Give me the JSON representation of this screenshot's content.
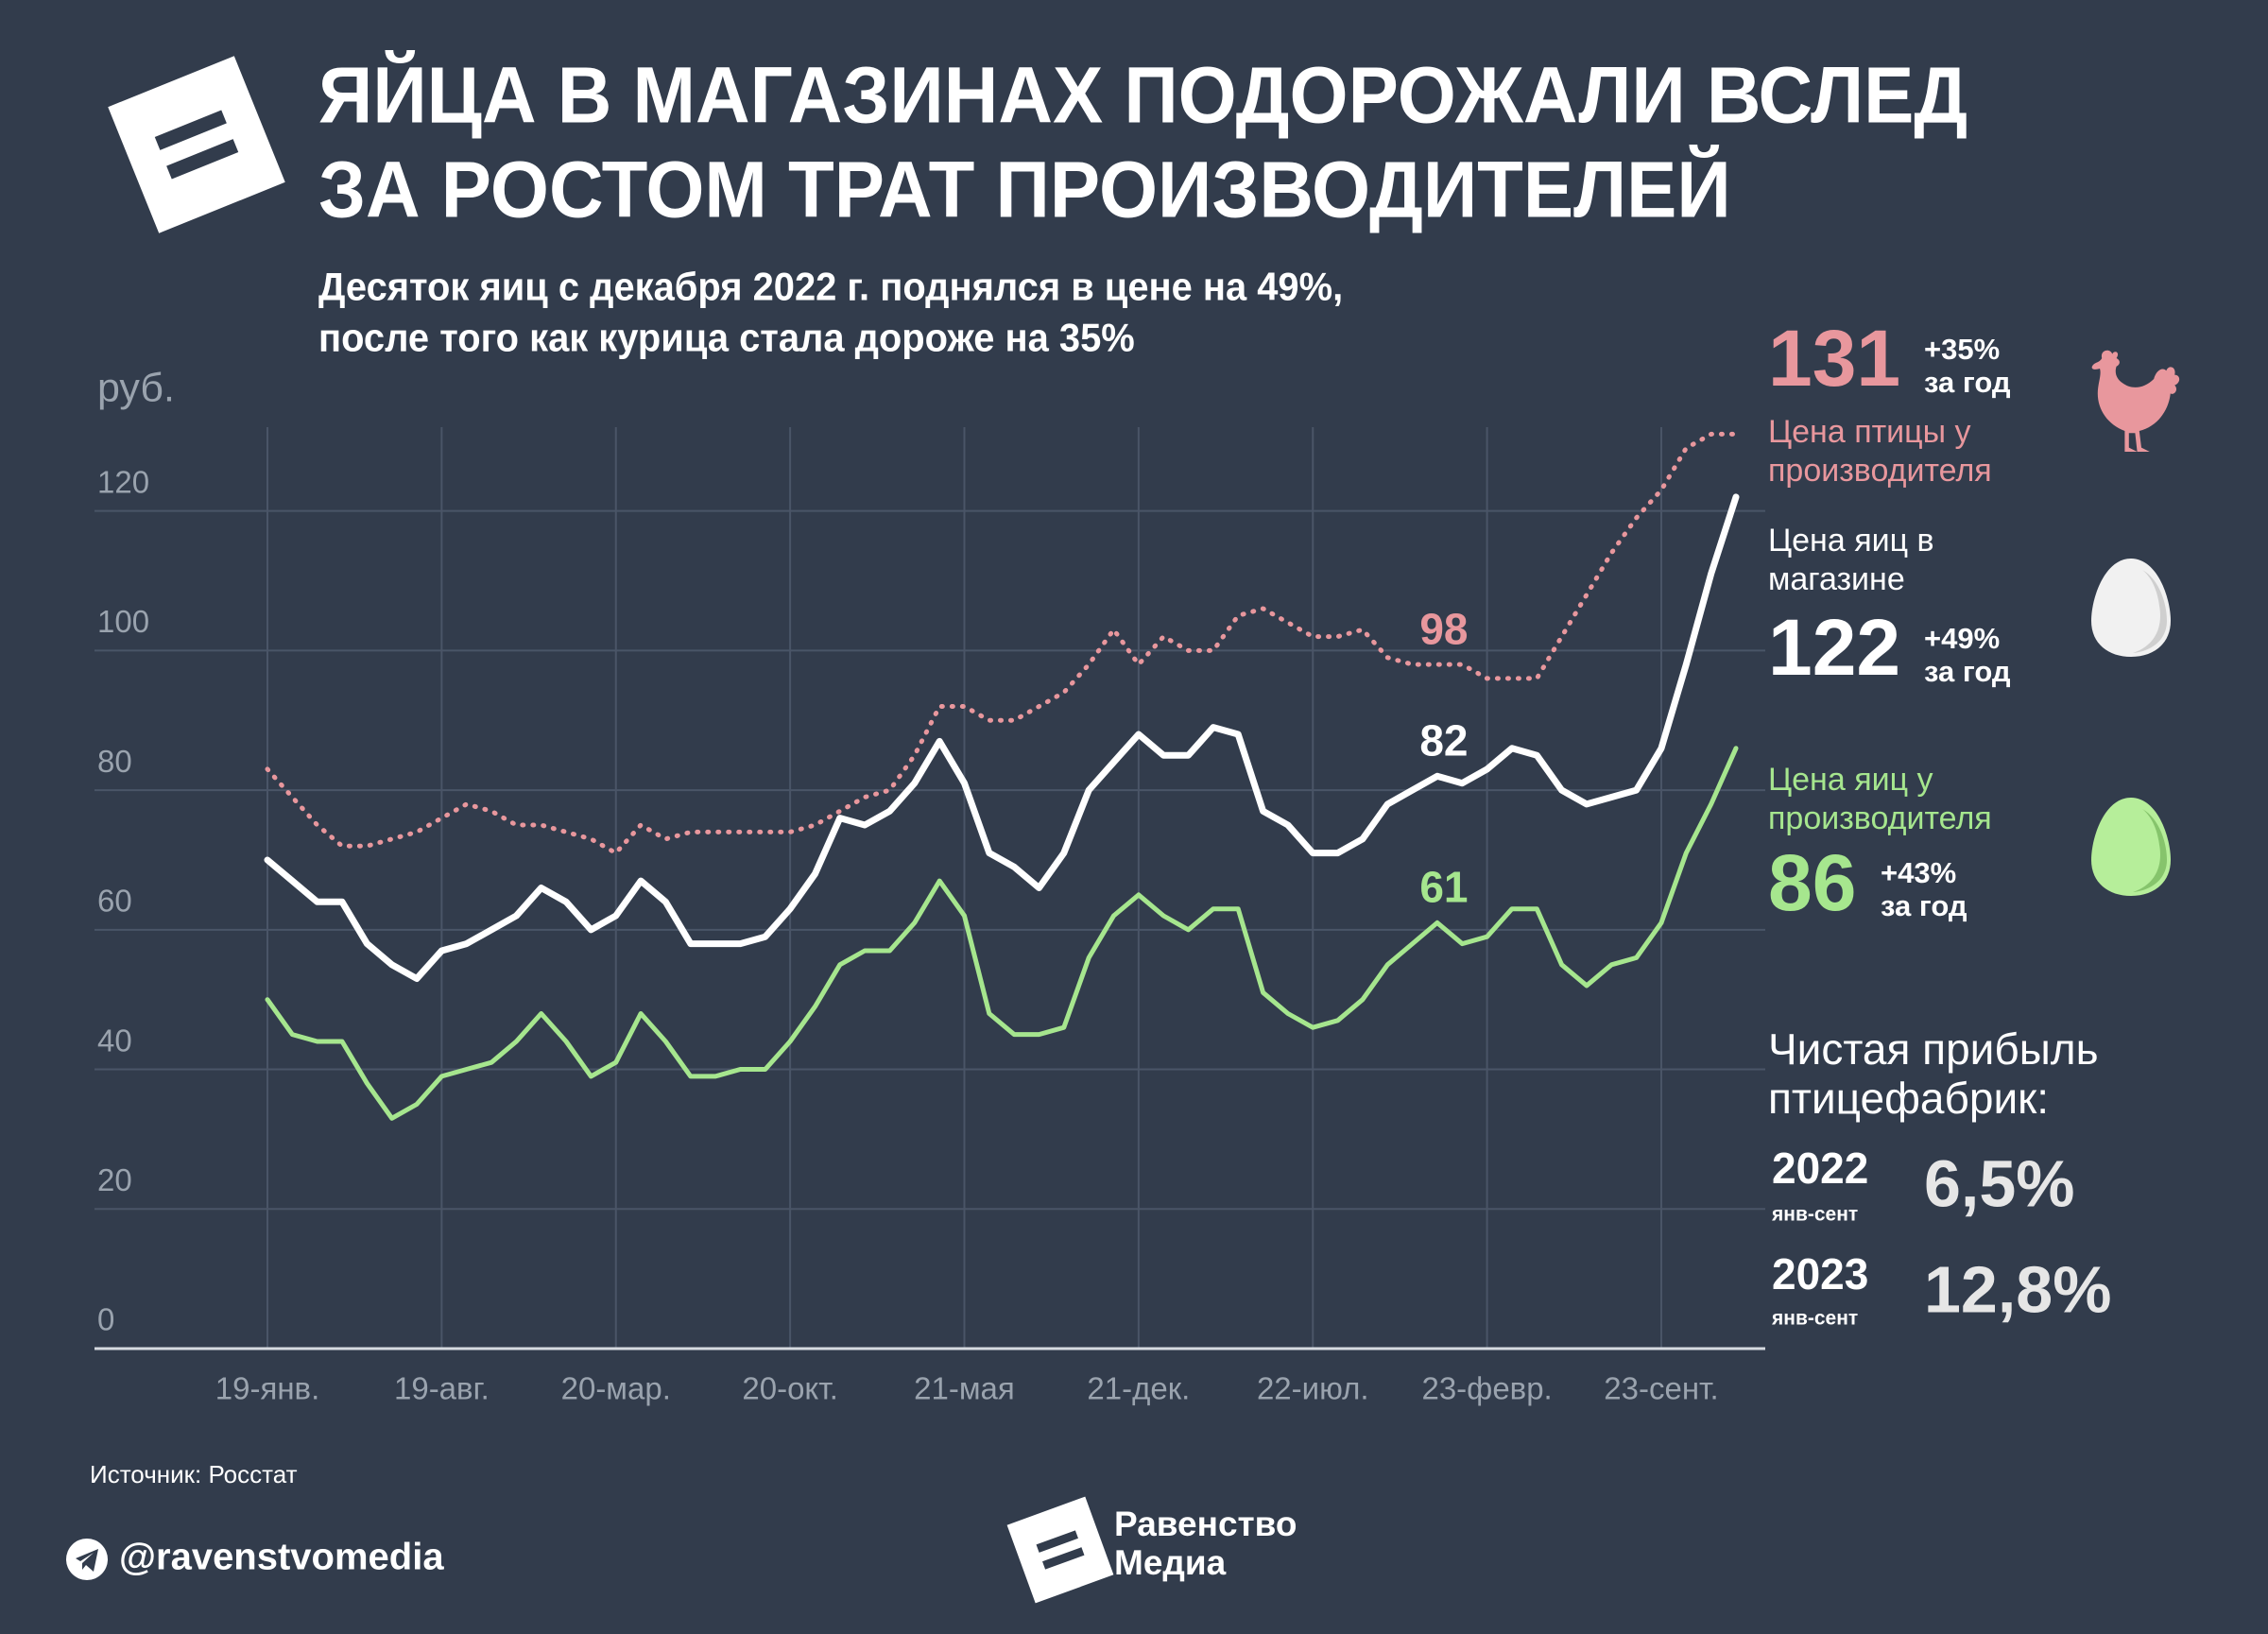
{
  "chart_data": {
    "type": "line",
    "title": "ЯЙЦА В МАГАЗИНАХ ПОДОРОЖАЛИ ВСЛЕД\nЗА РОСТОМ ТРАТ ПРОИЗВОДИТЕЛЕЙ",
    "subtitle": "Десяток яиц с декабря 2022 г. поднялся в цене на 49%,\nпосле того как курица стала дороже на 35%",
    "y_unit": "руб.",
    "categories": [
      "19-янв.",
      null,
      null,
      null,
      null,
      null,
      null,
      "19-авг.",
      null,
      null,
      null,
      null,
      null,
      null,
      "20-мар.",
      null,
      null,
      null,
      null,
      null,
      null,
      "20-окт.",
      null,
      null,
      null,
      null,
      null,
      null,
      "21-мая",
      null,
      null,
      null,
      null,
      null,
      null,
      "21-дек.",
      null,
      null,
      null,
      null,
      null,
      null,
      "22-июл.",
      null,
      null,
      null,
      null,
      null,
      null,
      "23-февр.",
      null,
      null,
      null,
      null,
      null,
      null,
      "23-сент.",
      null,
      null,
      null
    ],
    "series": [
      {
        "name": "Цена птицы у\nпроизводителя",
        "color": "#e8979d",
        "dashed": true,
        "change": "+35%",
        "period": "за год",
        "values": [
          83,
          79,
          75,
          72,
          72,
          73,
          74,
          76,
          78,
          77,
          75,
          75,
          74,
          73,
          71,
          75,
          73,
          74,
          74,
          74,
          74,
          74,
          75,
          77,
          79,
          80,
          85,
          92,
          92,
          90,
          90,
          92,
          94,
          98,
          103,
          98,
          102,
          100,
          100,
          105,
          106,
          104,
          102,
          102,
          103,
          99,
          98,
          98,
          98,
          96,
          96,
          96,
          102,
          108,
          114,
          119,
          123,
          129,
          131,
          131
        ]
      },
      {
        "name": "Цена яиц в\nмагазине",
        "color": "#ffffff",
        "dashed": false,
        "change": "+49%",
        "period": "за год",
        "values": [
          70,
          67,
          64,
          64,
          58,
          55,
          53,
          57,
          58,
          60,
          62,
          66,
          64,
          60,
          62,
          67,
          64,
          58,
          58,
          58,
          59,
          63,
          68,
          76,
          75,
          77,
          81,
          87,
          81,
          71,
          69,
          66,
          71,
          80,
          84,
          88,
          85,
          85,
          89,
          88,
          77,
          75,
          71,
          71,
          73,
          78,
          80,
          82,
          81,
          83,
          86,
          85,
          80,
          78,
          79,
          80,
          86,
          98,
          111,
          122
        ]
      },
      {
        "name": "Цена яиц у\nпроизводителя",
        "color": "#a6e68e",
        "dashed": false,
        "change": "+43%",
        "period": "за год",
        "values": [
          50,
          45,
          44,
          44,
          38,
          33,
          35,
          39,
          40,
          41,
          44,
          48,
          44,
          39,
          41,
          48,
          44,
          39,
          39,
          40,
          40,
          44,
          49,
          55,
          57,
          57,
          61,
          67,
          62,
          48,
          45,
          45,
          46,
          56,
          62,
          65,
          62,
          60,
          63,
          63,
          51,
          48,
          46,
          47,
          50,
          55,
          58,
          61,
          58,
          59,
          63,
          63,
          55,
          52,
          55,
          56,
          61,
          71,
          78,
          86
        ]
      }
    ],
    "ylim": [
      0,
      132
    ],
    "yticks": [
      0,
      20,
      40,
      60,
      80,
      100,
      120
    ],
    "grid": true
  },
  "profit": {
    "title": "Чистая прибыль\nптицефабрик:",
    "rows": [
      {
        "year": "2022",
        "period": "янв-сент",
        "value": "6,5%"
      },
      {
        "year": "2023",
        "period": "янв-сент",
        "value": "12,8%"
      }
    ]
  },
  "source": "Источник: Росстат",
  "handle": "@ravenstvomedia",
  "brand": "Равенство\nМедиа"
}
